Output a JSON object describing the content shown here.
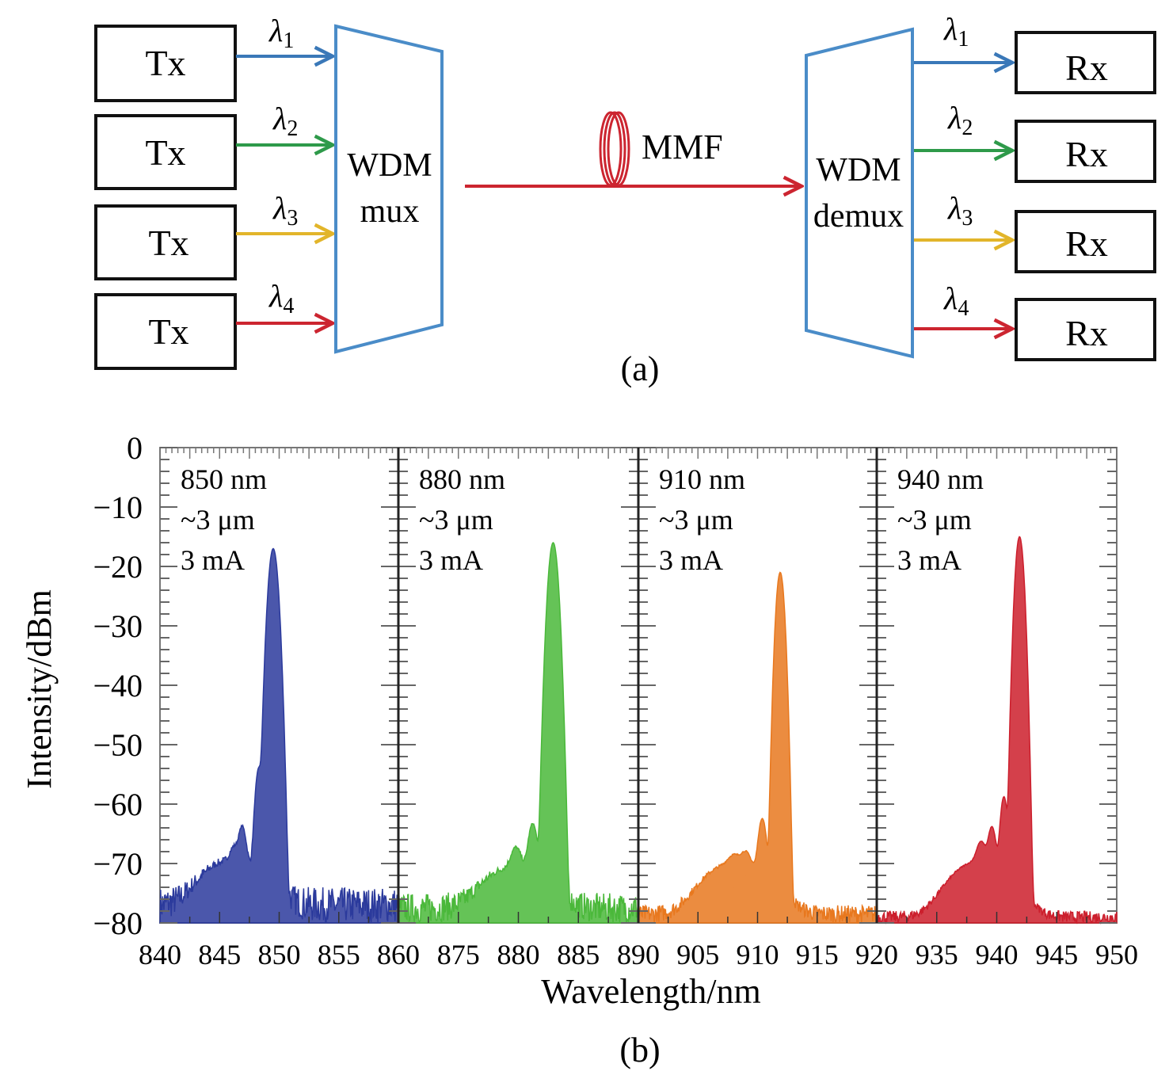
{
  "diagram": {
    "caption": "(a)",
    "transmitters": [
      {
        "label": "Tx",
        "wavelength": "λ",
        "sub": "1",
        "color": "#3a78b8"
      },
      {
        "label": "Tx",
        "wavelength": "λ",
        "sub": "2",
        "color": "#2e9a4a"
      },
      {
        "label": "Tx",
        "wavelength": "λ",
        "sub": "3",
        "color": "#e2b52a"
      },
      {
        "label": "Tx",
        "wavelength": "λ",
        "sub": "4",
        "color": "#cc2530"
      }
    ],
    "receivers": [
      {
        "label": "Rx",
        "wavelength": "λ",
        "sub": "1",
        "color": "#3a78b8"
      },
      {
        "label": "Rx",
        "wavelength": "λ",
        "sub": "2",
        "color": "#2e9a4a"
      },
      {
        "label": "Rx",
        "wavelength": "λ",
        "sub": "3",
        "color": "#e2b52a"
      },
      {
        "label": "Rx",
        "wavelength": "λ",
        "sub": "4",
        "color": "#cc2530"
      }
    ],
    "mux": {
      "line1": "WDM",
      "line2": "mux",
      "color": "#4a8cc8"
    },
    "demux": {
      "line1": "WDM",
      "line2": "demux",
      "color": "#4a8cc8"
    },
    "fiber": {
      "label": "MMF",
      "color": "#cc2530"
    }
  },
  "chart_data": {
    "type": "line",
    "caption": "(b)",
    "xlabel": "Wavelength/nm",
    "ylabel": "Intensity/dBm",
    "ylim": [
      -80,
      0
    ],
    "yticks": [
      "0",
      "−10",
      "−20",
      "−30",
      "−40",
      "−50",
      "−60",
      "−70",
      "−80"
    ],
    "ytick_values": [
      0,
      -10,
      -20,
      -30,
      -40,
      -50,
      -60,
      -70,
      -80
    ],
    "grid": false,
    "legend": "none",
    "panels": [
      {
        "name": "850 nm",
        "annotation": [
          "850 nm",
          "~3 μm",
          "3 mA"
        ],
        "color": "#2b3a9c",
        "xlim": [
          840,
          860
        ],
        "xticks": [
          840,
          845,
          850,
          855,
          860
        ],
        "noise_floor": [
          -80,
          -74
        ],
        "peaks": [
          {
            "x": 849.5,
            "y": -17,
            "width": 0.35
          },
          {
            "x": 848.3,
            "y": -54,
            "width": 0.3
          },
          {
            "x": 846.9,
            "y": -65,
            "width": 0.35
          },
          {
            "x": 846.2,
            "y": -71,
            "width": 0.4
          }
        ]
      },
      {
        "name": "880 nm",
        "annotation": [
          "880 nm",
          "~3 μm",
          "3 mA"
        ],
        "color": "#4ab83a",
        "xlim": [
          870,
          890
        ],
        "xticks": [
          875,
          880,
          885,
          890
        ],
        "noise_floor": [
          -80,
          -75
        ],
        "peaks": [
          {
            "x": 882.9,
            "y": -16,
            "width": 0.35
          },
          {
            "x": 881.2,
            "y": -64,
            "width": 0.4
          },
          {
            "x": 879.8,
            "y": -70,
            "width": 0.5
          }
        ]
      },
      {
        "name": "910 nm",
        "annotation": [
          "910 nm",
          "~3 μm",
          "3 mA"
        ],
        "color": "#e8781e",
        "xlim": [
          900,
          920
        ],
        "xticks": [
          905,
          910,
          915,
          920
        ],
        "noise_floor": [
          -80,
          -77
        ],
        "peaks": [
          {
            "x": 911.9,
            "y": -21,
            "width": 0.3
          },
          {
            "x": 910.4,
            "y": -63,
            "width": 0.35
          },
          {
            "x": 909.0,
            "y": -72,
            "width": 0.5
          },
          {
            "x": 908.0,
            "y": -74,
            "width": 0.6
          }
        ]
      },
      {
        "name": "940 nm",
        "annotation": [
          "940 nm",
          "~3 μm",
          "3 mA"
        ],
        "color": "#cc1e2c",
        "xlim": [
          930,
          950
        ],
        "xticks": [
          935,
          940,
          945,
          950
        ],
        "noise_floor": [
          -80,
          -78
        ],
        "peaks": [
          {
            "x": 941.9,
            "y": -15,
            "width": 0.3
          },
          {
            "x": 940.6,
            "y": -59,
            "width": 0.3
          },
          {
            "x": 939.6,
            "y": -65,
            "width": 0.35
          },
          {
            "x": 938.7,
            "y": -69,
            "width": 0.45
          }
        ]
      }
    ],
    "xtick_labels": [
      "840",
      "845",
      "850",
      "855",
      "860",
      "875",
      "880",
      "885",
      "890",
      "905",
      "910",
      "915",
      "920",
      "935",
      "940",
      "945",
      "950"
    ]
  }
}
